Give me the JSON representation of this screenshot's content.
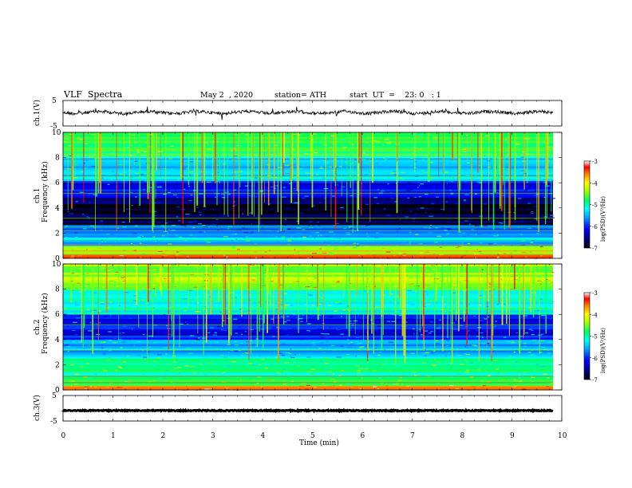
{
  "header": {
    "title": "VLF  Spectra",
    "date": "May 2  , 2020",
    "station": "station= ATH",
    "start": "start  UT  =    23: 0   : 1"
  },
  "chart_data": [
    {
      "type": "line",
      "name": "ch1-waveform",
      "ylabel": "ch.1(V)",
      "ylim": [
        -5,
        5
      ],
      "yticks": [
        "5",
        "-5"
      ],
      "xlim": [
        0,
        10
      ],
      "trace_color": "#000000",
      "approx_level": 0.3
    },
    {
      "type": "heatmap",
      "name": "ch1-spectrogram",
      "ylabel": "ch.1\nFrequency (kHz)",
      "ylim": [
        0,
        10
      ],
      "yticks": [
        "0",
        "2",
        "4",
        "6",
        "8",
        "10"
      ],
      "xlim": [
        0,
        9.8
      ],
      "colorbar": {
        "label": "log(PSD)(V²/Hz)",
        "range": [
          -7,
          -3
        ],
        "ticks": [
          "-3",
          "-4",
          "-5",
          "-6",
          "-7"
        ]
      },
      "freq_bands": [
        {
          "from": 0,
          "to": 0.3,
          "level": -3.8
        },
        {
          "from": 0.3,
          "to": 1.0,
          "level": -4.6
        },
        {
          "from": 1.0,
          "to": 2.0,
          "level": -5.6
        },
        {
          "from": 2.0,
          "to": 2.7,
          "level": -6.1
        },
        {
          "from": 2.7,
          "to": 4.8,
          "level": -6.8
        },
        {
          "from": 4.8,
          "to": 6.2,
          "level": -6.3
        },
        {
          "from": 6.2,
          "to": 8.2,
          "level": -5.6
        },
        {
          "from": 8.2,
          "to": 10,
          "level": -5.0
        }
      ]
    },
    {
      "type": "heatmap",
      "name": "ch2-spectrogram",
      "ylabel": "ch.2\nFrequency (kHz)",
      "ylim": [
        0,
        10
      ],
      "yticks": [
        "0",
        "2",
        "4",
        "6",
        "8",
        "10"
      ],
      "xlim": [
        0,
        9.8
      ],
      "colorbar": {
        "label": "log(PSD)(V²/Hz)",
        "range": [
          -7,
          -3
        ],
        "ticks": [
          "-3",
          "-4",
          "-5",
          "-6",
          "-7"
        ]
      },
      "freq_bands": [
        {
          "from": 0,
          "to": 0.4,
          "level": -3.9
        },
        {
          "from": 0.4,
          "to": 1.2,
          "level": -5.0
        },
        {
          "from": 1.2,
          "to": 2.6,
          "level": -5.2
        },
        {
          "from": 2.6,
          "to": 4.0,
          "level": -5.7
        },
        {
          "from": 4.0,
          "to": 6.0,
          "level": -6.2
        },
        {
          "from": 6.0,
          "to": 8.0,
          "level": -5.4
        },
        {
          "from": 8.0,
          "to": 10,
          "level": -4.6
        }
      ]
    },
    {
      "type": "line",
      "name": "ch3-waveform",
      "ylabel": "ch.3(V)",
      "ylim": [
        -5,
        5
      ],
      "yticks": [
        "5",
        "-5"
      ],
      "xlim": [
        0,
        10
      ],
      "trace_color": "#000000",
      "approx_level": -0.9
    }
  ],
  "x_axis": {
    "label": "Time  (min)",
    "ticks": [
      "0",
      "1",
      "2",
      "3",
      "4",
      "5",
      "6",
      "7",
      "8",
      "9",
      "10"
    ]
  },
  "colormap": [
    "#000000",
    "#000080",
    "#0000ff",
    "#00a0ff",
    "#00ffff",
    "#00ff60",
    "#a0ff00",
    "#ffff00",
    "#ff8000",
    "#ff0000",
    "#ffffff"
  ]
}
